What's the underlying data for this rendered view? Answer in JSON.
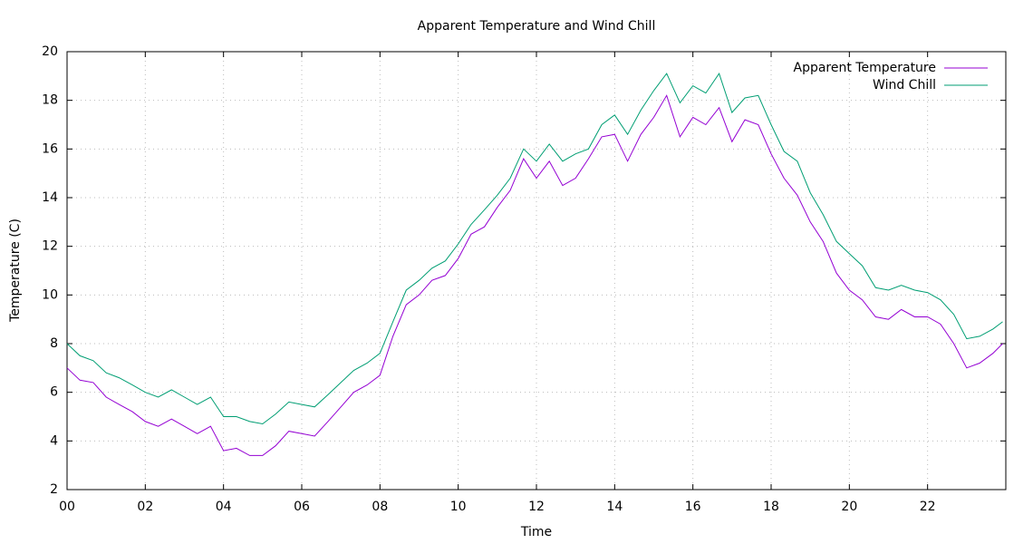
{
  "chart_data": {
    "type": "line",
    "title": "Apparent Temperature and Wind Chill",
    "xlabel": "Time",
    "ylabel": "Temperature (C)",
    "x": [
      0,
      0.33,
      0.67,
      1,
      1.33,
      1.67,
      2,
      2.33,
      2.67,
      3,
      3.33,
      3.67,
      4,
      4.33,
      4.67,
      5,
      5.33,
      5.67,
      6,
      6.33,
      6.67,
      7,
      7.33,
      7.67,
      8,
      8.33,
      8.67,
      9,
      9.33,
      9.67,
      10,
      10.33,
      10.67,
      11,
      11.33,
      11.67,
      12,
      12.33,
      12.67,
      13,
      13.33,
      13.67,
      14,
      14.33,
      14.67,
      15,
      15.33,
      15.67,
      16,
      16.33,
      16.67,
      17,
      17.33,
      17.67,
      18,
      18.33,
      18.67,
      19,
      19.33,
      19.67,
      20,
      20.33,
      20.67,
      21,
      21.33,
      21.67,
      22,
      22.33,
      22.67,
      23,
      23.33,
      23.67,
      23.92
    ],
    "series": [
      {
        "name": "Apparent Temperature",
        "color": "#9400d3",
        "values": [
          7.0,
          6.5,
          6.4,
          5.8,
          5.5,
          5.2,
          4.8,
          4.6,
          4.9,
          4.6,
          4.3,
          4.6,
          3.6,
          3.7,
          3.4,
          3.4,
          3.8,
          4.4,
          4.3,
          4.2,
          4.8,
          5.4,
          6.0,
          6.3,
          6.7,
          8.3,
          9.6,
          10.0,
          10.6,
          10.8,
          11.5,
          12.5,
          12.8,
          13.6,
          14.3,
          15.6,
          14.8,
          15.5,
          14.5,
          14.8,
          15.6,
          16.5,
          16.6,
          15.5,
          16.6,
          17.3,
          18.2,
          16.5,
          17.3,
          17.0,
          17.7,
          16.3,
          17.2,
          17.0,
          15.8,
          14.8,
          14.1,
          13.0,
          12.2,
          10.9,
          10.2,
          9.8,
          9.1,
          9.0,
          9.4,
          9.1,
          9.1,
          8.8,
          8.0,
          7.0,
          7.2,
          7.6,
          8.0
        ]
      },
      {
        "name": "Wind Chill",
        "color": "#009e73",
        "values": [
          8.0,
          7.5,
          7.3,
          6.8,
          6.6,
          6.3,
          6.0,
          5.8,
          6.1,
          5.8,
          5.5,
          5.8,
          5.0,
          5.0,
          4.8,
          4.7,
          5.1,
          5.6,
          5.5,
          5.4,
          5.9,
          6.4,
          6.9,
          7.2,
          7.6,
          8.9,
          10.2,
          10.6,
          11.1,
          11.4,
          12.1,
          12.9,
          13.5,
          14.1,
          14.8,
          16.0,
          15.5,
          16.2,
          15.5,
          15.8,
          16.0,
          17.0,
          17.4,
          16.6,
          17.6,
          18.4,
          19.1,
          17.9,
          18.6,
          18.3,
          19.1,
          17.5,
          18.1,
          18.2,
          17.0,
          15.9,
          15.5,
          14.2,
          13.3,
          12.2,
          11.7,
          11.2,
          10.3,
          10.2,
          10.4,
          10.2,
          10.1,
          9.8,
          9.2,
          8.2,
          8.3,
          8.6,
          8.9
        ]
      }
    ],
    "xlim": [
      0,
      24
    ],
    "xticks": [
      {
        "value": 0,
        "label": "00"
      },
      {
        "value": 2,
        "label": "02"
      },
      {
        "value": 4,
        "label": "04"
      },
      {
        "value": 6,
        "label": "06"
      },
      {
        "value": 8,
        "label": "08"
      },
      10,
      12,
      14,
      16,
      18,
      20,
      22
    ],
    "ylim": [
      2,
      20
    ],
    "yticks": [
      2,
      4,
      6,
      8,
      10,
      12,
      14,
      16,
      18,
      20
    ],
    "grid": true,
    "legend": "top-right"
  }
}
